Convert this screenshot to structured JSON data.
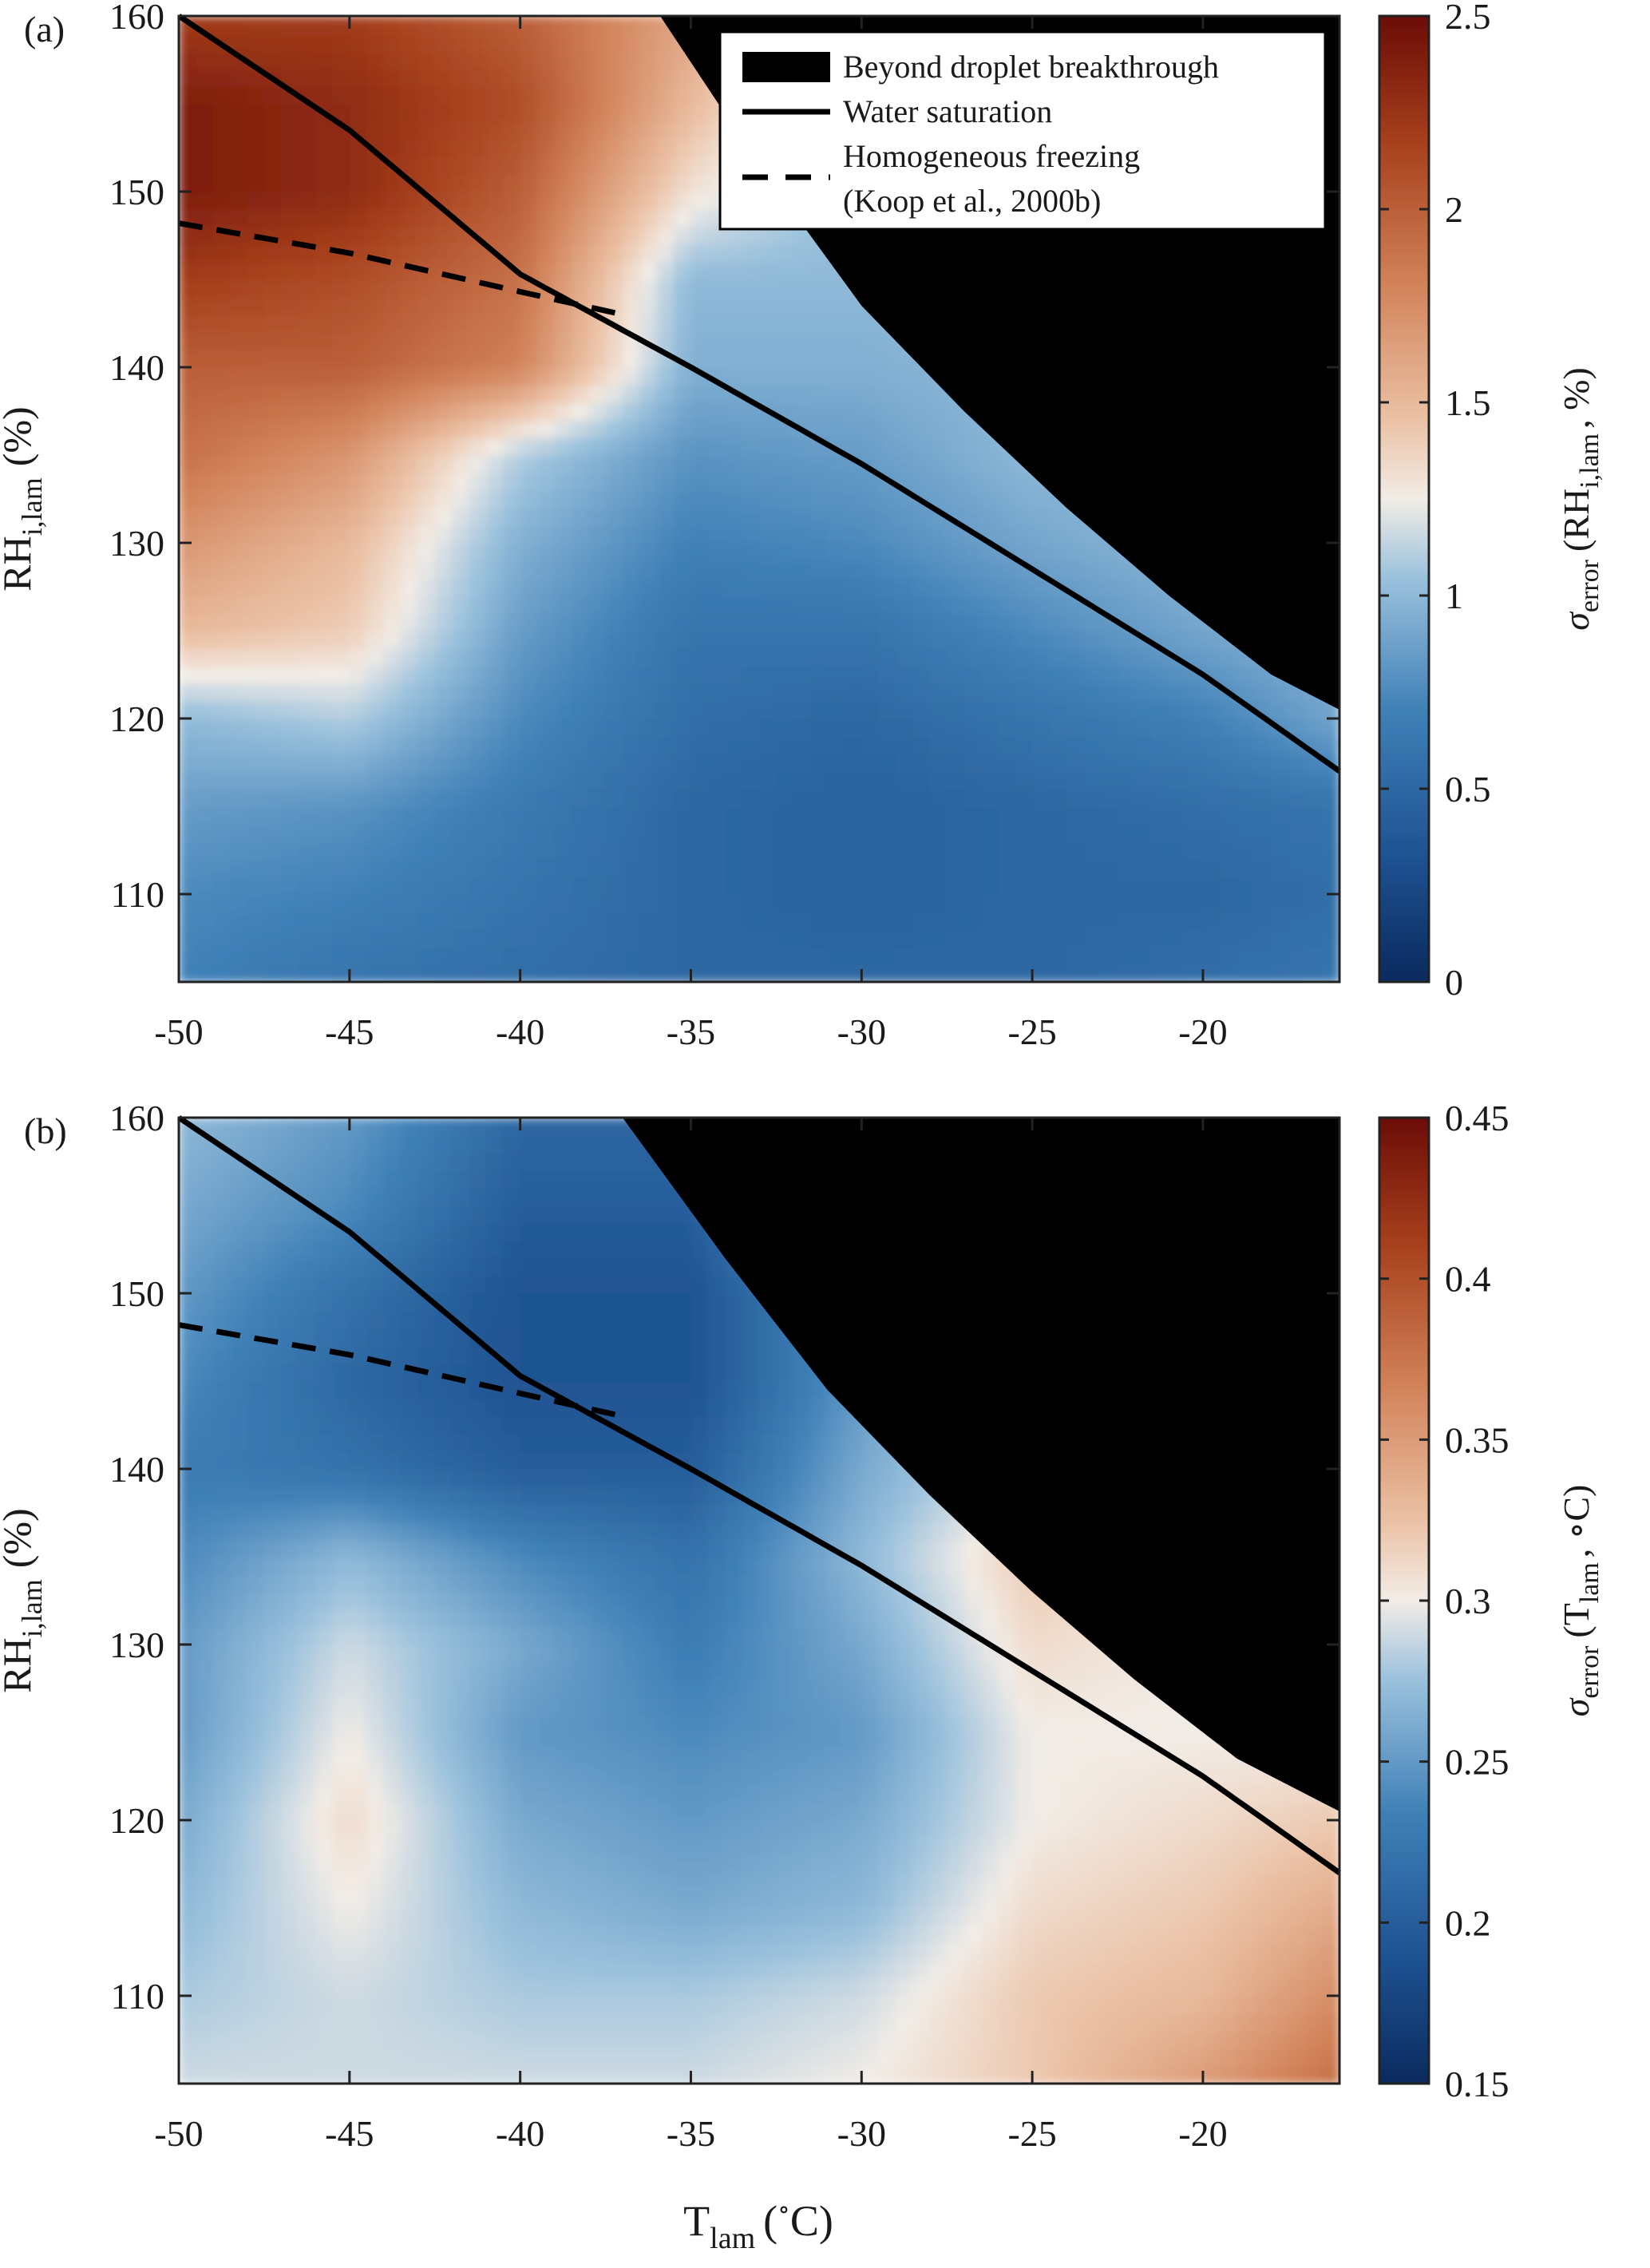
{
  "figure": {
    "panels": [
      "(a)",
      "(b)"
    ],
    "xlabel_main": "T",
    "xlabel_sub": "lam",
    "xlabel_unit": "(",
    "xlabel_deg": "∘",
    "xlabel_end": "C)",
    "ylabel_main": "RH",
    "ylabel_sub": "i,lam",
    "ylabel_unit": "(%)"
  },
  "legend": {
    "items": [
      {
        "label": "Beyond droplet breakthrough",
        "style": "black-fill"
      },
      {
        "label": "Water saturation",
        "style": "solid-line"
      },
      {
        "label": "Homogeneous freezing",
        "style": "dashed-line"
      },
      {
        "label": "(Koop et al., 2000b)",
        "style": "none"
      }
    ]
  },
  "colors": {
    "cold": "#0b2a5e",
    "mid": "#f2ece6",
    "warm": "#6b0c07",
    "black": "#000000"
  },
  "chart_data": [
    {
      "type": "heatmap",
      "panel": "(a)",
      "xlim": [
        -50,
        -16
      ],
      "ylim": [
        105,
        160
      ],
      "xticks": [
        -50,
        -45,
        -40,
        -35,
        -30,
        -25,
        -20
      ],
      "yticks": [
        110,
        120,
        130,
        140,
        150,
        160
      ],
      "colorbar": {
        "label_main": "σ",
        "label_sub": "error",
        "label_open": "(RH",
        "label_sub2": "i,lam",
        "label_end": ", %)",
        "range": [
          0,
          2.5
        ],
        "ticks": [
          "0",
          "0.5",
          "1",
          "1.5",
          "2",
          "2.5"
        ]
      },
      "water_saturation": {
        "x": [
          -50,
          -45,
          -40,
          -35,
          -30,
          -25,
          -20,
          -16
        ],
        "y": [
          160,
          153.5,
          145.3,
          140,
          134.5,
          128.5,
          122.5,
          117
        ]
      },
      "homogeneous_freezing": {
        "x": [
          -50,
          -45,
          -40,
          -37
        ],
        "y": [
          148.2,
          146.5,
          144.3,
          143
        ]
      },
      "breakthrough_boundary": {
        "x": [
          -35.9,
          -33,
          -30,
          -27,
          -24,
          -21,
          -18,
          -16
        ],
        "y": [
          160,
          151.5,
          143.5,
          137.5,
          132,
          127,
          122.5,
          120.5
        ]
      },
      "approx_field": {
        "x": [
          -50,
          -45,
          -40,
          -35,
          -30,
          -25,
          -20,
          -16
        ],
        "y": [
          105,
          110,
          115,
          120,
          125,
          130,
          135,
          140,
          145,
          150,
          155,
          160
        ],
        "values": [
          [
            0.7,
            0.6,
            0.55,
            0.5,
            0.5,
            0.5,
            0.55,
            0.6
          ],
          [
            0.75,
            0.7,
            0.6,
            0.5,
            0.45,
            0.5,
            0.5,
            0.55
          ],
          [
            0.85,
            0.8,
            0.65,
            0.5,
            0.45,
            0.5,
            0.55,
            0.6
          ],
          [
            1.0,
            1.1,
            0.75,
            0.55,
            0.5,
            0.6,
            0.7,
            0.9
          ],
          [
            1.5,
            1.4,
            0.85,
            0.6,
            0.6,
            0.75,
            0.9,
            1.0
          ],
          [
            1.7,
            1.5,
            0.95,
            0.7,
            0.75,
            0.9,
            1.0,
            1.0
          ],
          [
            1.9,
            1.7,
            1.1,
            0.8,
            0.85,
            1.0,
            1.0,
            1.0
          ],
          [
            2.0,
            2.0,
            1.8,
            0.95,
            0.95,
            1.0,
            1.0,
            1.0
          ],
          [
            2.2,
            2.1,
            1.9,
            1.0,
            1.0,
            1.0,
            1.0,
            1.0
          ],
          [
            2.4,
            2.3,
            2.0,
            1.3,
            1.0,
            1.0,
            1.0,
            1.0
          ],
          [
            2.4,
            2.3,
            2.1,
            1.5,
            1.0,
            1.0,
            1.0,
            1.0
          ],
          [
            2.2,
            2.2,
            2.0,
            1.6,
            1.0,
            1.0,
            1.0,
            1.0
          ]
        ]
      }
    },
    {
      "type": "heatmap",
      "panel": "(b)",
      "xlim": [
        -50,
        -16
      ],
      "ylim": [
        105,
        160
      ],
      "xticks": [
        -50,
        -45,
        -40,
        -35,
        -30,
        -25,
        -20
      ],
      "yticks": [
        110,
        120,
        130,
        140,
        150,
        160
      ],
      "colorbar": {
        "label_main": "σ",
        "label_sub": "error",
        "label_open": "(T",
        "label_sub2": "lam",
        "label_end": ", ∘C)",
        "range": [
          0.15,
          0.45
        ],
        "ticks": [
          "0.15",
          "0.2",
          "0.25",
          "0.3",
          "0.35",
          "0.4",
          "0.45"
        ]
      },
      "water_saturation": {
        "x": [
          -50,
          -45,
          -40,
          -35,
          -30,
          -25,
          -20,
          -16
        ],
        "y": [
          160,
          153.5,
          145.3,
          140,
          134.5,
          128.5,
          122.5,
          117
        ]
      },
      "homogeneous_freezing": {
        "x": [
          -50,
          -45,
          -40,
          -37
        ],
        "y": [
          148.2,
          146.5,
          144.3,
          143
        ]
      },
      "breakthrough_boundary": {
        "x": [
          -37,
          -34,
          -31,
          -28,
          -25,
          -22,
          -19,
          -16
        ],
        "y": [
          160,
          152,
          144.5,
          138.5,
          133,
          128,
          123.5,
          120.5
        ]
      },
      "approx_field": {
        "x": [
          -50,
          -45,
          -40,
          -35,
          -30,
          -25,
          -20,
          -16
        ],
        "y": [
          105,
          110,
          115,
          120,
          125,
          130,
          135,
          140,
          145,
          150,
          155,
          160
        ],
        "values": [
          [
            0.29,
            0.29,
            0.29,
            0.29,
            0.3,
            0.32,
            0.35,
            0.38
          ],
          [
            0.28,
            0.29,
            0.28,
            0.28,
            0.29,
            0.32,
            0.33,
            0.36
          ],
          [
            0.27,
            0.3,
            0.27,
            0.26,
            0.27,
            0.31,
            0.32,
            0.34
          ],
          [
            0.26,
            0.31,
            0.26,
            0.25,
            0.26,
            0.3,
            0.31,
            0.32
          ],
          [
            0.25,
            0.3,
            0.25,
            0.24,
            0.25,
            0.3,
            0.3,
            0.3
          ],
          [
            0.25,
            0.29,
            0.26,
            0.23,
            0.26,
            0.31,
            0.3,
            0.3
          ],
          [
            0.24,
            0.27,
            0.24,
            0.22,
            0.27,
            0.32,
            0.3,
            0.3
          ],
          [
            0.23,
            0.22,
            0.2,
            0.2,
            0.26,
            0.3,
            0.3,
            0.3
          ],
          [
            0.24,
            0.21,
            0.19,
            0.19,
            0.25,
            0.3,
            0.3,
            0.3
          ],
          [
            0.25,
            0.22,
            0.19,
            0.19,
            0.25,
            0.3,
            0.3,
            0.3
          ],
          [
            0.26,
            0.24,
            0.2,
            0.2,
            0.3,
            0.3,
            0.3,
            0.3
          ],
          [
            0.27,
            0.25,
            0.21,
            0.21,
            0.3,
            0.3,
            0.3,
            0.3
          ]
        ]
      }
    }
  ]
}
